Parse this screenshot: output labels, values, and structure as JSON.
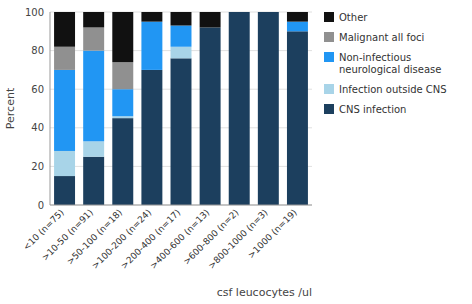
{
  "chart_data": {
    "type": "bar",
    "stacked": true,
    "grid": true,
    "legend": "right",
    "xlabel": "csf leucocytes /ul",
    "ylabel": "Percent",
    "categories": [
      "<10 (n=75)",
      ">10-50 (n=91)",
      ">50-100 (n=18)",
      ">100-200 (n=24)",
      ">200-400 (n=17)",
      ">400-600 (n=13)",
      ">600-800 (n=2)",
      ">800-1000 (n=3)",
      ">1000 (n=19)"
    ],
    "series": [
      {
        "name": "CNS infection",
        "color": "#1c3f5e",
        "values": [
          15,
          25,
          45,
          70,
          76,
          92,
          100,
          100,
          90
        ]
      },
      {
        "name": "Infection outside CNS",
        "color": "#a8d4e8",
        "values": [
          13,
          8,
          1,
          0,
          6,
          0,
          0,
          0,
          0
        ]
      },
      {
        "name": "Non-infectious\nneurological disease",
        "color": "#2196f3",
        "values": [
          42,
          47,
          14,
          25,
          11,
          0,
          0,
          0,
          5
        ]
      },
      {
        "name": "Malignant  all foci",
        "color": "#909090",
        "values": [
          12,
          12,
          14,
          0,
          0,
          0,
          0,
          0,
          0
        ]
      },
      {
        "name": "Other",
        "color": "#111111",
        "values": [
          18,
          8,
          26,
          5,
          7,
          8,
          0,
          0,
          5
        ]
      }
    ],
    "ylim": [
      0,
      100
    ],
    "yticks": [
      0,
      20,
      40,
      60,
      80,
      100
    ]
  }
}
